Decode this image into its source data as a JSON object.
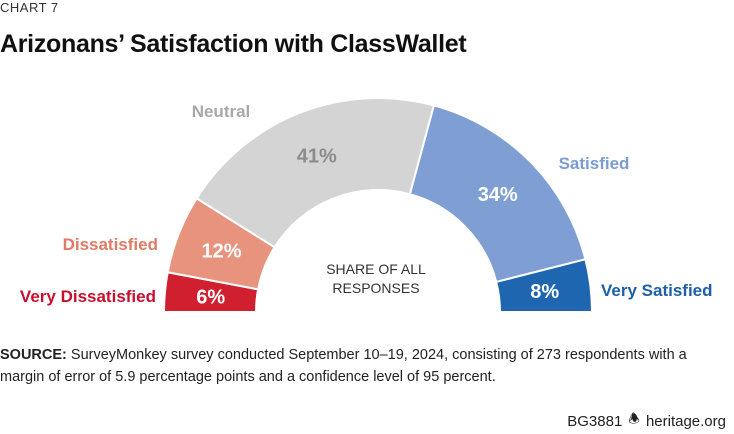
{
  "header": {
    "chart_label": "CHART 7",
    "title": "Arizonans’ Satisfaction with ClassWallet"
  },
  "center_label": [
    "SHARE OF ALL",
    "RESPONSES"
  ],
  "source": {
    "label": "SOURCE:",
    "text": "SurveyMonkey survey conducted September 10–19, 2024, consisting of 273 respondents with a margin of error of 5.9 percentage points and a confidence level of 95 percent."
  },
  "footer": {
    "code": "BG3881",
    "site": "heritage.org",
    "icon": "bell-icon"
  },
  "chart_data": {
    "type": "pie",
    "variant": "half-donut",
    "categories": [
      "Very Dissatisfied",
      "Dissatisfied",
      "Neutral",
      "Satisfied",
      "Very Satisfied"
    ],
    "values": [
      6,
      12,
      41,
      34,
      8
    ],
    "value_labels": [
      "6%",
      "12%",
      "41%",
      "34%",
      "8%"
    ],
    "colors": [
      "#d0202f",
      "#e8937e",
      "#d4d4d4",
      "#7f9fd4",
      "#1f66b0"
    ],
    "label_colors": [
      "#c8102e",
      "#e07a64",
      "#a8a8a8",
      "#7b9bd3",
      "#1f5fa8"
    ],
    "value_label_colors": [
      "#ffffff",
      "#ffffff",
      "#8c8c8c",
      "#ffffff",
      "#ffffff"
    ]
  }
}
